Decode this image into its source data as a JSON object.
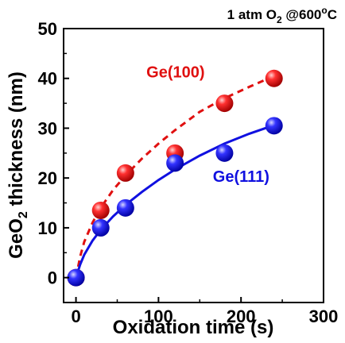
{
  "chart_data": {
    "type": "scatter",
    "title": "",
    "condition": {
      "base": "1 atm O",
      "sub": "2",
      "mid": " @600",
      "sup": "o",
      "end": "C"
    },
    "xlabel": "Oxidation time (s)",
    "ylabel": {
      "base": "GeO",
      "sub": "2",
      "rest": " thickness (nm)"
    },
    "xlim": [
      -15,
      300
    ],
    "ylim": [
      -5,
      50
    ],
    "xticks": [
      0,
      100,
      200,
      300
    ],
    "yticks": [
      0,
      10,
      20,
      30,
      40,
      50
    ],
    "grid": false,
    "series": [
      {
        "name": "Ge(100)",
        "color": "#e01010",
        "fit_style": "dashed",
        "x": [
          0,
          30,
          60,
          120,
          180,
          240
        ],
        "y": [
          0,
          13.5,
          21,
          25,
          35,
          40
        ],
        "fit_x": [
          0,
          5,
          10,
          20,
          30,
          45,
          60,
          80,
          100,
          120,
          150,
          180,
          210,
          240
        ],
        "fit_y": [
          0,
          4.2,
          7.2,
          11.0,
          14.0,
          17.6,
          20.5,
          23.9,
          26.9,
          29.6,
          33.3,
          36.0,
          38.3,
          40.5
        ]
      },
      {
        "name": "Ge(111)",
        "color": "#1010e0",
        "fit_style": "solid",
        "x": [
          0,
          30,
          60,
          120,
          180,
          240
        ],
        "y": [
          0,
          10,
          14,
          23,
          25,
          30.5
        ],
        "fit_x": [
          0,
          5,
          10,
          20,
          30,
          45,
          60,
          80,
          100,
          120,
          150,
          180,
          210,
          240
        ],
        "fit_y": [
          0,
          2.6,
          4.6,
          7.4,
          9.6,
          12.3,
          14.6,
          17.2,
          19.6,
          21.7,
          24.5,
          26.9,
          28.9,
          30.6
        ]
      }
    ]
  }
}
